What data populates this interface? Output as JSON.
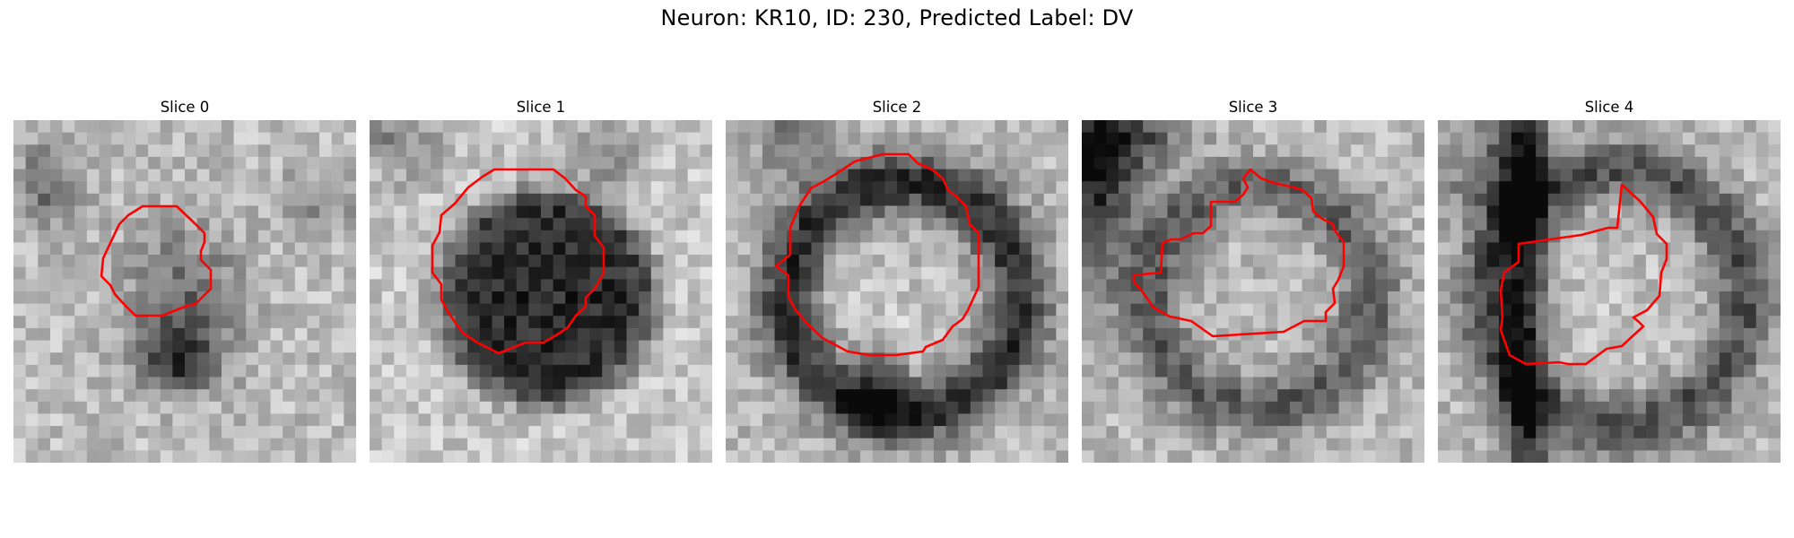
{
  "figure": {
    "title": "Neuron: KR10, ID: 230, Predicted Label: DV",
    "contour_color": "#ff0000"
  },
  "panels": [
    {
      "title": "Slice 0",
      "pattern": "small-blob"
    },
    {
      "title": "Slice 1",
      "pattern": "dark-disk"
    },
    {
      "title": "Slice 2",
      "pattern": "dark-ring"
    },
    {
      "title": "Slice 3",
      "pattern": "faint-ring"
    },
    {
      "title": "Slice 4",
      "pattern": "ring-with-streak"
    }
  ]
}
